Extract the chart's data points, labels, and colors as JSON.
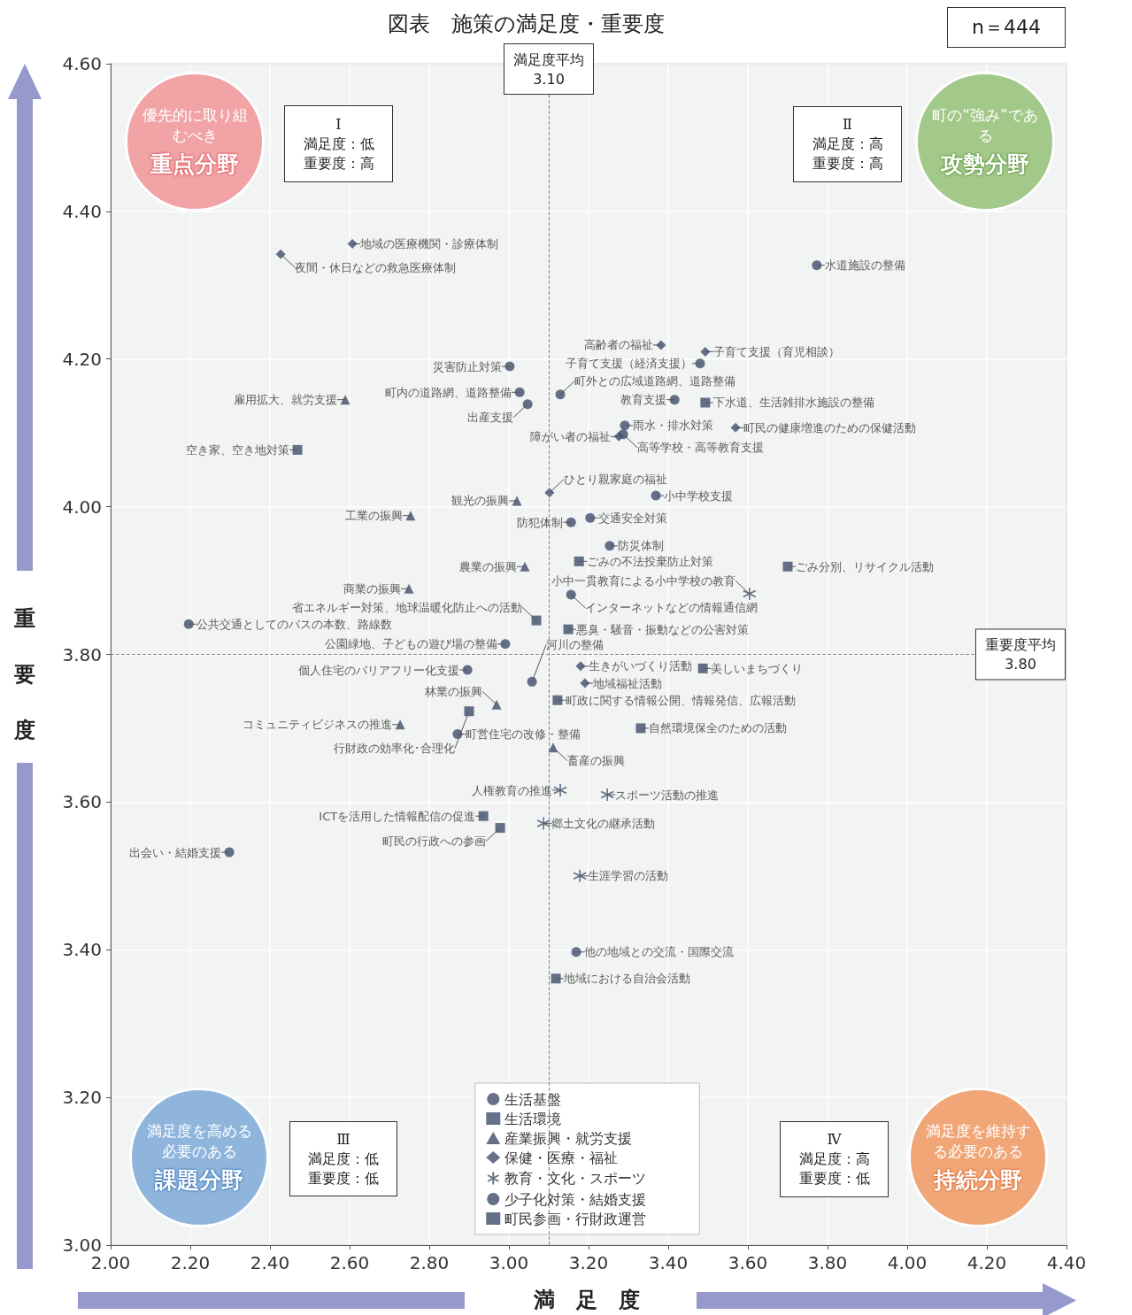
{
  "chart_data": {
    "type": "scatter",
    "title": "図表　施策の満足度・重要度",
    "xlabel": "満　足　度",
    "ylabel": "重要度",
    "xlim": [
      2,
      4.4
    ],
    "ylim": [
      3,
      4.6
    ],
    "xticks": [
      {
        "value": 2,
        "label": "2.00"
      },
      {
        "value": 2.2,
        "label": "2.20"
      },
      {
        "value": 2.4,
        "label": "2.40"
      },
      {
        "value": 2.6,
        "label": "2.60"
      },
      {
        "value": 2.8,
        "label": "2.80"
      },
      {
        "value": 3,
        "label": "3.00"
      },
      {
        "value": 3.2,
        "label": "3.20"
      },
      {
        "value": 3.4,
        "label": "3.40"
      },
      {
        "value": 3.6,
        "label": "3.60"
      },
      {
        "value": 3.8,
        "label": "3.80"
      },
      {
        "value": 4,
        "label": "4.00"
      },
      {
        "value": 4.2,
        "label": "4.20"
      },
      {
        "value": 4.4,
        "label": "4.40"
      }
    ],
    "yticks": [
      {
        "value": 3,
        "label": "3.00"
      },
      {
        "value": 3.2,
        "label": "3.20"
      },
      {
        "value": 3.4,
        "label": "3.40"
      },
      {
        "value": 3.6,
        "label": "3.60"
      },
      {
        "value": 3.8,
        "label": "3.80"
      },
      {
        "value": 4,
        "label": "4.00"
      },
      {
        "value": 4.2,
        "label": "4.20"
      },
      {
        "value": 4.4,
        "label": "4.40"
      },
      {
        "value": 4.6,
        "label": "4.60"
      }
    ],
    "legend": "bottom",
    "grid": true,
    "ref_lines": [
      {
        "axis": "x",
        "value": 3.1,
        "label": "満足度平均\n3.10",
        "line_style": "dashed",
        "color": "#888888"
      },
      {
        "axis": "y",
        "value": 3.8,
        "label": "重要度平均\n3.80",
        "line_style": "dashed",
        "color": "#888888"
      }
    ],
    "series": [
      {
        "name": "生活基盤",
        "color": "#3e4d6c",
        "marker": "circle",
        "x": [
          3.773,
          3.002,
          3.027,
          3.129,
          3.291,
          3.156,
          3.204,
          3.253,
          3.156,
          2.196,
          2.991,
          2.896,
          3.058,
          2.871,
          3.169
        ],
        "values": [
          4.327,
          4.19,
          4.155,
          4.152,
          4.11,
          3.979,
          3.985,
          3.947,
          3.881,
          3.841,
          3.814,
          3.779,
          3.763,
          3.692,
          3.397
        ]
      },
      {
        "name": "生活環境",
        "color": "#3e4d6c",
        "marker": "square",
        "x": [
          2.469,
          3.493,
          3.176,
          3.7,
          3.069,
          3.149,
          3.487,
          3.331,
          2.936
        ],
        "values": [
          4.077,
          4.141,
          3.926,
          3.919,
          3.846,
          3.834,
          3.781,
          3.7,
          3.581
        ]
      },
      {
        "name": "産業振興・就労支援",
        "color": "#3e4d6c",
        "marker": "triangle",
        "x": [
          2.589,
          3.02,
          2.753,
          3.04,
          2.749,
          2.969,
          2.727,
          3.111
        ],
        "values": [
          4.145,
          4.008,
          3.988,
          3.919,
          3.889,
          3.732,
          3.705,
          3.674
        ]
      },
      {
        "name": "保健・医療・福祉",
        "color": "#3e4d6c",
        "marker": "diamond",
        "x": [
          2.607,
          2.427,
          3.382,
          3.493,
          3.569,
          3.276,
          3.102,
          3.18,
          3.191
        ],
        "values": [
          4.356,
          4.342,
          4.219,
          4.21,
          4.107,
          4.095,
          4.019,
          3.784,
          3.761
        ]
      },
      {
        "name": "教育・文化・スポーツ",
        "color": "#3e4d6c",
        "marker": "cross",
        "x": [
          3.604,
          3.247,
          3.129,
          3.087,
          3.178
        ],
        "values": [
          3.882,
          3.61,
          3.616,
          3.571,
          3.5
        ]
      },
      {
        "name": "少子化対策・結婚支援",
        "color": "#3e4d6c",
        "marker": "circle",
        "x": [
          3.48,
          3.416,
          3.047,
          3.287,
          3.369,
          2.298
        ],
        "values": [
          4.194,
          4.145,
          4.139,
          4.098,
          4.015,
          3.532
        ]
      },
      {
        "name": "町民参画・行財政運営",
        "color": "#3e4d6c",
        "marker": "square",
        "x": [
          2.9,
          3.122,
          2.978,
          3.118
        ],
        "values": [
          3.723,
          3.738,
          3.565,
          3.361
        ]
      }
    ],
    "annotations": [
      "n＝444",
      "Ⅰ満足度：低重要度：高",
      "Ⅱ満足度：高重要度：高",
      "Ⅲ満足度：低重要度：低",
      "Ⅳ満足度：高重要度：低",
      "優先的に取り組むべき重点分野",
      "町の“強み”である攻勢分野",
      "満足度を高める必要のある課題分野",
      "満足度を維持する必要のある持続分野",
      {
        "text": "水道施設の整備",
        "x": 3.773,
        "y": 4.327
      },
      {
        "text": "災害防止対策",
        "x": 3.002,
        "y": 4.19
      },
      {
        "text": "町内の道路網、道路整備",
        "x": 3.027,
        "y": 4.155
      },
      {
        "text": "町外との広域道路網、道路整備",
        "x": 3.129,
        "y": 4.152
      },
      {
        "text": "雨水・排水対策",
        "x": 3.291,
        "y": 4.11
      },
      {
        "text": "防犯体制",
        "x": 3.156,
        "y": 3.979
      },
      {
        "text": "交通安全対策",
        "x": 3.204,
        "y": 3.985
      },
      {
        "text": "防災体制",
        "x": 3.253,
        "y": 3.947
      },
      {
        "text": "インターネットなどの情報通信網",
        "x": 3.156,
        "y": 3.881
      },
      {
        "text": "公共交通としてのバスの本数、路線数",
        "x": 2.196,
        "y": 3.841
      },
      {
        "text": "公園緑地、子どもの遊び場の整備",
        "x": 2.991,
        "y": 3.814
      },
      {
        "text": "個人住宅のバリアフリー化支援",
        "x": 2.896,
        "y": 3.779
      },
      {
        "text": "河川の整備",
        "x": 3.058,
        "y": 3.763
      },
      {
        "text": "町営住宅の改修・整備",
        "x": 2.871,
        "y": 3.692
      },
      {
        "text": "他の地域との交流・国際交流",
        "x": 3.169,
        "y": 3.397
      },
      {
        "text": "空き家、空き地対策",
        "x": 2.469,
        "y": 4.077
      },
      {
        "text": "下水道、生活雑排水施設の整備",
        "x": 3.493,
        "y": 4.141
      },
      {
        "text": "ごみの不法投棄防止対策",
        "x": 3.176,
        "y": 3.926
      },
      {
        "text": "ごみ分別、リサイクル活動",
        "x": 3.7,
        "y": 3.919
      },
      {
        "text": "省エネルギー対策、地球温暖化防止への活動",
        "x": 3.069,
        "y": 3.846
      },
      {
        "text": "悪臭・騒音・振動などの公害対策",
        "x": 3.149,
        "y": 3.834
      },
      {
        "text": "美しいまちづくり",
        "x": 3.487,
        "y": 3.781
      },
      {
        "text": "自然環境保全のための活動",
        "x": 3.331,
        "y": 3.7
      },
      {
        "text": "ICTを活用した情報配信の促進",
        "x": 2.936,
        "y": 3.581
      },
      {
        "text": "雇用拡大、就労支援",
        "x": 2.589,
        "y": 4.145
      },
      {
        "text": "観光の振興",
        "x": 3.02,
        "y": 4.008
      },
      {
        "text": "工業の振興",
        "x": 2.753,
        "y": 3.988
      },
      {
        "text": "農業の振興",
        "x": 3.04,
        "y": 3.919
      },
      {
        "text": "商業の振興",
        "x": 2.749,
        "y": 3.889
      },
      {
        "text": "林業の振興",
        "x": 2.969,
        "y": 3.732
      },
      {
        "text": "コミュニティビジネスの推進",
        "x": 2.727,
        "y": 3.705
      },
      {
        "text": "畜産の振興",
        "x": 3.111,
        "y": 3.674
      },
      {
        "text": "地域の医療機関・診療体制",
        "x": 2.607,
        "y": 4.356
      },
      {
        "text": "夜間・休日などの救急医療体制",
        "x": 2.427,
        "y": 4.342
      },
      {
        "text": "高齢者の福祉",
        "x": 3.382,
        "y": 4.219
      },
      {
        "text": "子育て支援（育児相談）",
        "x": 3.493,
        "y": 4.21
      },
      {
        "text": "町民の健康増進のための保健活動",
        "x": 3.569,
        "y": 4.107
      },
      {
        "text": "障がい者の福祉",
        "x": 3.276,
        "y": 4.095
      },
      {
        "text": "ひとり親家庭の福祉",
        "x": 3.102,
        "y": 4.019
      },
      {
        "text": "生きがいづくり活動",
        "x": 3.18,
        "y": 3.784
      },
      {
        "text": "地域福祉活動",
        "x": 3.191,
        "y": 3.761
      },
      {
        "text": "小中一貫教育による小中学校の教育",
        "x": 3.604,
        "y": 3.882
      },
      {
        "text": "スポーツ活動の推進",
        "x": 3.247,
        "y": 3.61
      },
      {
        "text": "人権教育の推進",
        "x": 3.129,
        "y": 3.616
      },
      {
        "text": "郷土文化の継承活動",
        "x": 3.087,
        "y": 3.571
      },
      {
        "text": "生涯学習の活動",
        "x": 3.178,
        "y": 3.5
      },
      {
        "text": "子育て支援（経済支援）",
        "x": 3.48,
        "y": 4.194
      },
      {
        "text": "教育支援",
        "x": 3.416,
        "y": 4.145
      },
      {
        "text": "出産支援",
        "x": 3.047,
        "y": 4.139
      },
      {
        "text": "高等学校・高等教育支援",
        "x": 3.287,
        "y": 4.098
      },
      {
        "text": "小中学校支援",
        "x": 3.369,
        "y": 4.015
      },
      {
        "text": "出会い・結婚支援",
        "x": 2.298,
        "y": 3.532
      },
      {
        "text": "行財政の効率化･合理化",
        "x": 2.9,
        "y": 3.723
      },
      {
        "text": "町政に関する情報公開、情報発信、広報活動",
        "x": 3.122,
        "y": 3.738
      },
      {
        "text": "町民の行政への参画",
        "x": 2.978,
        "y": 3.565
      },
      {
        "text": "地域における自治会活動",
        "x": 3.118,
        "y": 3.361
      }
    ]
  }
}
